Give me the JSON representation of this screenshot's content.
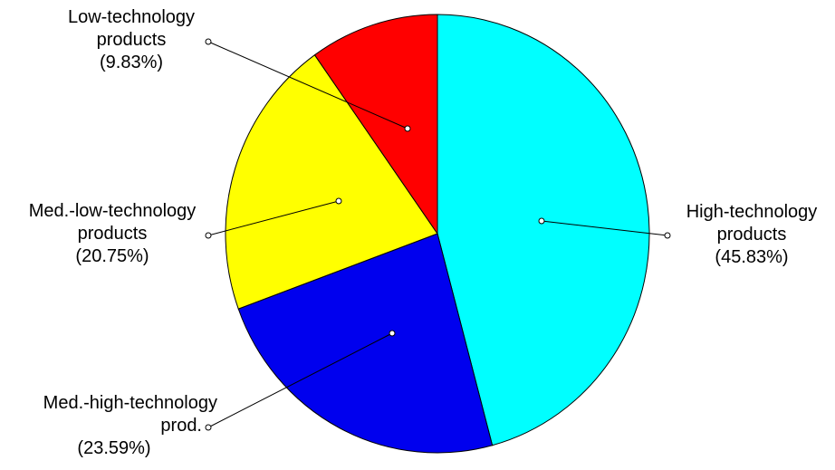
{
  "chart_data": {
    "type": "pie",
    "title": "",
    "start_angle_deg": 0,
    "direction": "clockwise",
    "slices": [
      {
        "name": "High-technology products",
        "value": 45.83,
        "color": "#00ffff",
        "label_lines": [
          "High-technology",
          "products",
          "(45.83%)"
        ],
        "label_side": "right"
      },
      {
        "name": "Med.-high-technology prod.",
        "value": 23.59,
        "color": "#0000ee",
        "label_lines": [
          "Med.-high-technology",
          "prod.",
          "(23.59%)"
        ],
        "label_side": "left"
      },
      {
        "name": "Med.-low-technology products",
        "value": 20.75,
        "color": "#ffff00",
        "label_lines": [
          "Med.-low-technology",
          "products",
          "(20.75%)"
        ],
        "label_side": "left"
      },
      {
        "name": "Low-technology products",
        "value": 9.83,
        "color": "#ff0000",
        "label_lines": [
          "Low-technology",
          "products",
          "(9.83%)"
        ],
        "label_side": "left"
      }
    ]
  }
}
